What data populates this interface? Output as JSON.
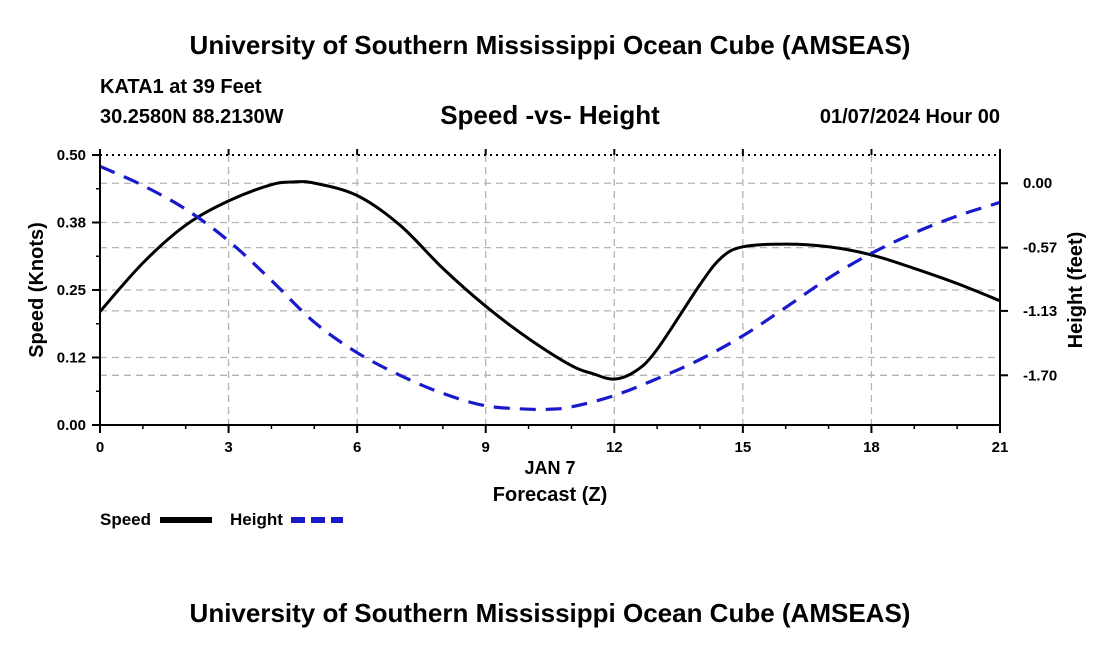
{
  "header": {
    "title": "University of Southern Mississippi Ocean Cube (AMSEAS)",
    "station_name": "KATA1 at 39 Feet",
    "coords": "30.2580N  88.2130W",
    "chart_title": "Speed -vs- Height",
    "date_label": "01/07/2024 Hour 00"
  },
  "footer": {
    "title": "University of Southern Mississippi Ocean Cube (AMSEAS)"
  },
  "chart_data": {
    "type": "line",
    "title": "Speed -vs- Height",
    "xlabel": "Forecast (Z)",
    "xlabel_date": "JAN 7",
    "ylabel_left": "Speed (Knots)",
    "ylabel_right": "Height (feet)",
    "xlim": [
      0,
      21
    ],
    "ylim_left": [
      0,
      0.5
    ],
    "ylim_right": [
      -2.14,
      0.25
    ],
    "x_ticks": [
      0,
      3,
      6,
      9,
      12,
      15,
      18,
      21
    ],
    "x_tick_labels": [
      "0",
      "3",
      "6",
      "9",
      "12",
      "15",
      "18",
      "21"
    ],
    "y_left_ticks": [
      0,
      0.125,
      0.25,
      0.375,
      0.5
    ],
    "y_left_tick_labels": [
      "0.00",
      "0.12",
      "0.25",
      "0.38",
      "0.50"
    ],
    "y_right_ticks": [
      0.0,
      -0.57,
      -1.13,
      -1.7
    ],
    "y_right_tick_labels": [
      "0.00",
      "-0.57",
      "-1.13",
      "-1.70"
    ],
    "grid": true,
    "legend_position": "bottom-left",
    "series": [
      {
        "name": "Speed",
        "axis": "left",
        "color": "#000000",
        "style": "solid",
        "x": [
          0,
          1,
          2,
          3,
          4,
          4.5,
          5,
          6,
          7,
          8,
          9,
          10,
          11,
          11.5,
          12,
          12.5,
          13,
          14,
          14.5,
          15,
          16,
          17,
          18,
          19,
          20,
          21
        ],
        "values": [
          0.21,
          0.3,
          0.37,
          0.415,
          0.445,
          0.45,
          0.448,
          0.425,
          0.37,
          0.29,
          0.22,
          0.16,
          0.11,
          0.095,
          0.085,
          0.1,
          0.14,
          0.26,
          0.31,
          0.33,
          0.335,
          0.33,
          0.315,
          0.29,
          0.262,
          0.23
        ]
      },
      {
        "name": "Height",
        "axis": "right",
        "color": "#1a1acc",
        "style": "dashed",
        "x": [
          0,
          1,
          2,
          3,
          4,
          5,
          6,
          7,
          8,
          9,
          10,
          10.5,
          11,
          12,
          13,
          14,
          15,
          16,
          17,
          18,
          19,
          20,
          21
        ],
        "values": [
          0.15,
          -0.02,
          -0.23,
          -0.51,
          -0.86,
          -1.23,
          -1.5,
          -1.7,
          -1.86,
          -1.97,
          -2.0,
          -2.0,
          -1.98,
          -1.88,
          -1.73,
          -1.56,
          -1.35,
          -1.1,
          -0.84,
          -0.62,
          -0.44,
          -0.29,
          -0.17
        ]
      }
    ]
  }
}
